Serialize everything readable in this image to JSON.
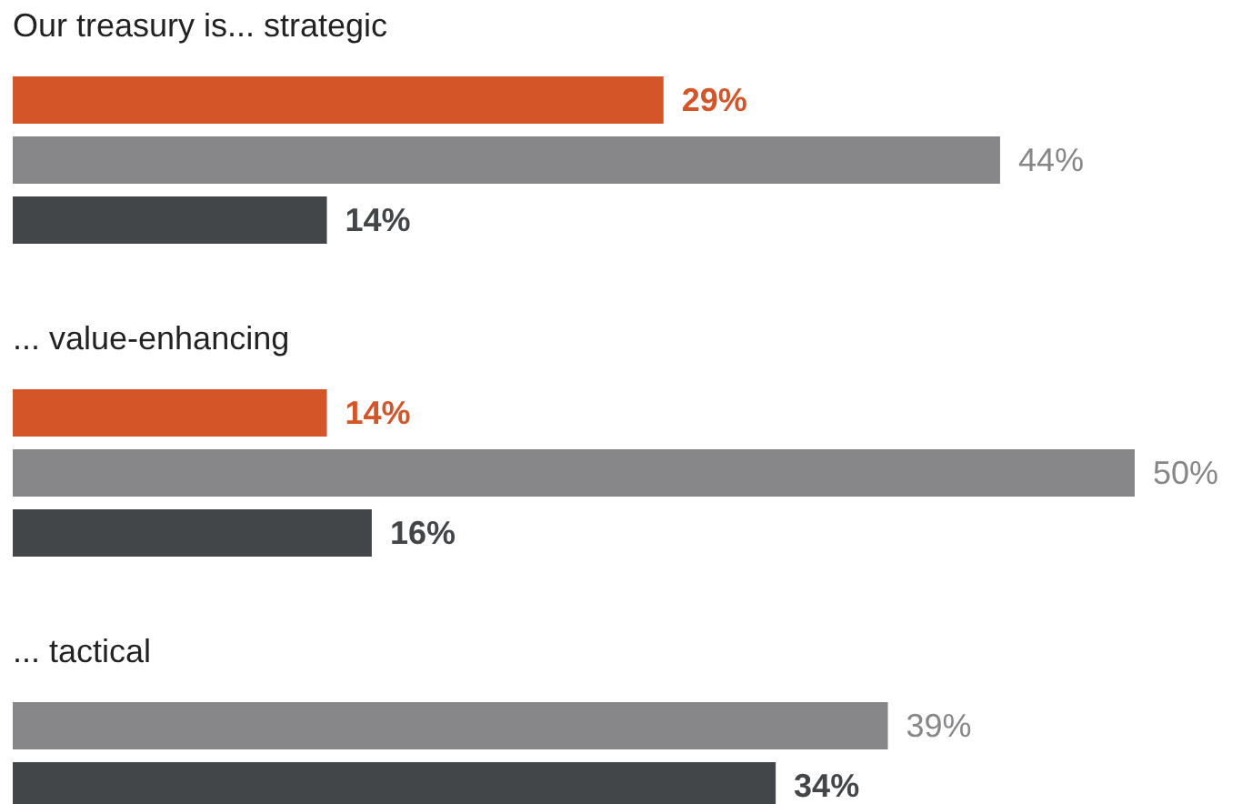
{
  "chart_data": {
    "type": "bar",
    "orientation": "horizontal",
    "categories": [
      "Our treasury is... strategic",
      "... value-enhancing",
      "... tactical"
    ],
    "series": [
      {
        "color": "#d35528",
        "values": [
          29,
          14,
          null
        ],
        "value_labels": [
          "29%",
          "14%",
          null
        ]
      },
      {
        "color": "#87878a",
        "values": [
          44,
          50,
          39
        ],
        "value_labels": [
          "44%",
          "50%",
          "39%"
        ]
      },
      {
        "color": "#434649",
        "values": [
          14,
          16,
          34
        ],
        "value_labels": [
          "14%",
          "16%",
          "34%"
        ]
      }
    ]
  }
}
